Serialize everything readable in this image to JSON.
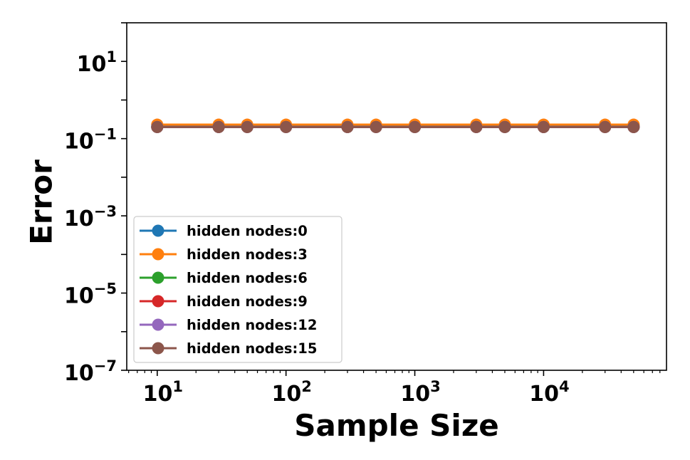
{
  "chart_data": {
    "type": "line",
    "xlabel": "Sample Size",
    "ylabel": "Error",
    "xscale": "log",
    "yscale": "log",
    "xlim": [
      5.8,
      90000
    ],
    "ylim": [
      1e-07,
      100
    ],
    "x_ticks": [
      {
        "value": 10,
        "base": "10",
        "exp": "1"
      },
      {
        "value": 100,
        "base": "10",
        "exp": "2"
      },
      {
        "value": 1000,
        "base": "10",
        "exp": "3"
      },
      {
        "value": 10000,
        "base": "10",
        "exp": "4"
      }
    ],
    "y_ticks": [
      {
        "value": 10,
        "base": "10",
        "exp": "1"
      },
      {
        "value": 0.1,
        "base": "10",
        "exp": "−1"
      },
      {
        "value": 0.001,
        "base": "10",
        "exp": "−3"
      },
      {
        "value": 1e-05,
        "base": "10",
        "exp": "−5"
      },
      {
        "value": 1e-07,
        "base": "10",
        "exp": "−7"
      }
    ],
    "x": [
      10,
      30,
      50,
      100,
      300,
      500,
      1000,
      3000,
      5000,
      10000,
      30000,
      50000
    ],
    "legend_position": "lower-left",
    "grid": false,
    "series": [
      {
        "name": "hidden nodes:0",
        "color": "#1f77b4",
        "values": [
          0.21,
          0.21,
          0.21,
          0.21,
          0.21,
          0.21,
          0.21,
          0.21,
          0.21,
          0.21,
          0.21,
          0.21
        ]
      },
      {
        "name": "hidden nodes:3",
        "color": "#ff7f0e",
        "values": [
          0.23,
          0.23,
          0.23,
          0.23,
          0.23,
          0.23,
          0.23,
          0.23,
          0.23,
          0.23,
          0.23,
          0.23
        ]
      },
      {
        "name": "hidden nodes:6",
        "color": "#2ca02c",
        "values": [
          0.2,
          0.2,
          0.2,
          0.2,
          0.2,
          0.2,
          0.2,
          0.2,
          0.2,
          0.2,
          0.2,
          0.2
        ]
      },
      {
        "name": "hidden nodes:9",
        "color": "#d62728",
        "values": [
          0.2,
          0.2,
          0.2,
          0.2,
          0.2,
          0.2,
          0.2,
          0.2,
          0.2,
          0.2,
          0.2,
          0.2
        ]
      },
      {
        "name": "hidden nodes:12",
        "color": "#9467bd",
        "values": [
          0.2,
          0.2,
          0.2,
          0.2,
          0.2,
          0.2,
          0.2,
          0.2,
          0.2,
          0.2,
          0.2,
          0.2
        ]
      },
      {
        "name": "hidden nodes:15",
        "color": "#8c564b",
        "values": [
          0.2,
          0.2,
          0.2,
          0.2,
          0.2,
          0.2,
          0.2,
          0.2,
          0.2,
          0.2,
          0.2,
          0.2
        ]
      }
    ]
  }
}
